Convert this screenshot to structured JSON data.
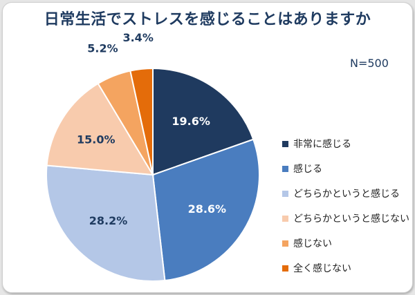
{
  "chart_data": {
    "type": "pie",
    "title": "日常生活でストレスを感じることはありますか",
    "annotation": "N=500",
    "categories": [
      "非常に感じる",
      "感じる",
      "どちらかというと感じる",
      "どちらかというと感じない",
      "感じない",
      "全く感じない"
    ],
    "values": [
      19.6,
      28.6,
      28.2,
      15.0,
      5.2,
      3.4
    ],
    "value_labels": [
      "19.6%",
      "28.6%",
      "28.2%",
      "15.0%",
      "5.2%",
      "3.4%"
    ],
    "colors": [
      "#1f3a5f",
      "#4a7dbf",
      "#b4c7e7",
      "#f8cbad",
      "#f4a460",
      "#e46c0a"
    ],
    "label_colors": [
      "#ffffff",
      "#ffffff",
      "#1f3b60",
      "#1f3b60",
      "#1f3b60",
      "#1f3b60"
    ],
    "start_angle": "12 o'clock",
    "direction": "clockwise",
    "legend_position": "right"
  }
}
